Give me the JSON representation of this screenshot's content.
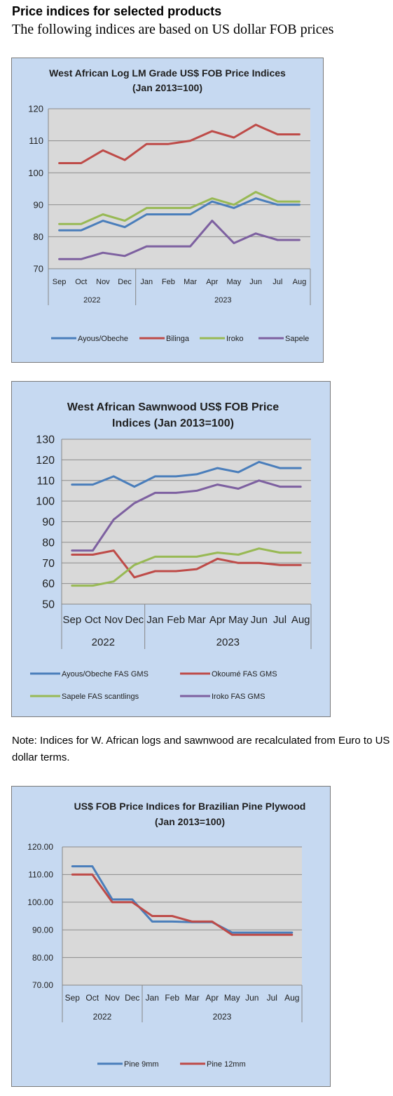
{
  "page": {
    "heading": "Price indices for selected products",
    "subheading": "The following indices are based on US dollar FOB prices",
    "note": "Note: Indices for W. African logs and sawnwood are recalculated from Euro to US dollar terms."
  },
  "chart_data": [
    {
      "type": "line",
      "title_lines": [
        "West African Log LM Grade US$ FOB Price Indices",
        "(Jan 2013=100)"
      ],
      "categories": [
        "Sep",
        "Oct",
        "Nov",
        "Dec",
        "Jan",
        "Feb",
        "Mar",
        "Apr",
        "May",
        "Jun",
        "Jul",
        "Aug"
      ],
      "year_groups": [
        {
          "label": "2022",
          "span": 4
        },
        {
          "label": "2023",
          "span": 8
        }
      ],
      "ylim": [
        70,
        120
      ],
      "yticks": [
        "70",
        "80",
        "90",
        "100",
        "110",
        "120"
      ],
      "grid": true,
      "legend_position": "bottom",
      "series": [
        {
          "name": "Ayous/Obeche",
          "color": "#4a7ebb",
          "values": [
            82,
            82,
            85,
            83,
            87,
            87,
            87,
            91,
            89,
            92,
            90,
            90
          ]
        },
        {
          "name": "Bilinga",
          "color": "#be4b48",
          "values": [
            103,
            103,
            107,
            104,
            109,
            109,
            110,
            113,
            111,
            115,
            112,
            112
          ]
        },
        {
          "name": "Iroko",
          "color": "#98b954",
          "values": [
            84,
            84,
            87,
            85,
            89,
            89,
            89,
            92,
            90,
            94,
            91,
            91
          ]
        },
        {
          "name": "Sapele",
          "color": "#7d60a0",
          "values": [
            73,
            73,
            75,
            74,
            77,
            77,
            77,
            85,
            78,
            81,
            79,
            79
          ]
        }
      ]
    },
    {
      "type": "line",
      "title_lines": [
        "West African Sawnwood US$ FOB Price",
        "Indices (Jan 2013=100)"
      ],
      "categories": [
        "Sep",
        "Oct",
        "Nov",
        "Dec",
        "Jan",
        "Feb",
        "Mar",
        "Apr",
        "May",
        "Jun",
        "Jul",
        "Aug"
      ],
      "year_groups": [
        {
          "label": "2022",
          "span": 4
        },
        {
          "label": "2023",
          "span": 8
        }
      ],
      "ylim": [
        50,
        130
      ],
      "yticks": [
        "50",
        "60",
        "70",
        "80",
        "90",
        "100",
        "110",
        "120",
        "130"
      ],
      "grid": true,
      "legend_position": "bottom",
      "series": [
        {
          "name": "Ayous/Obeche  FAS GMS",
          "color": "#4a7ebb",
          "values": [
            108,
            108,
            112,
            107,
            112,
            112,
            113,
            116,
            114,
            119,
            116,
            116
          ]
        },
        {
          "name": "Okoumé  FAS GMS",
          "color": "#be4b48",
          "values": [
            74,
            74,
            76,
            63,
            66,
            66,
            67,
            72,
            70,
            70,
            69,
            69
          ]
        },
        {
          "name": "Sapele FAS scantlings",
          "color": "#98b954",
          "values": [
            59,
            59,
            61,
            69,
            73,
            73,
            73,
            75,
            74,
            77,
            75,
            75
          ]
        },
        {
          "name": "Iroko FAS GMS",
          "color": "#7d60a0",
          "values": [
            76,
            76,
            91,
            99,
            104,
            104,
            105,
            108,
            106,
            110,
            107,
            107
          ]
        }
      ]
    },
    {
      "type": "line",
      "title_lines": [
        "US$ FOB Price Indices for Brazilian Pine Plywood",
        "(Jan 2013=100)"
      ],
      "categories": [
        "Sep",
        "Oct",
        "Nov",
        "Dec",
        "Jan",
        "Feb",
        "Mar",
        "Apr",
        "May",
        "Jun",
        "Jul",
        "Aug"
      ],
      "year_groups": [
        {
          "label": "2022",
          "span": 4
        },
        {
          "label": "2023",
          "span": 8
        }
      ],
      "ylim": [
        70,
        120
      ],
      "yticks": [
        "70.00",
        "80.00",
        "90.00",
        "100.00",
        "110.00",
        "120.00"
      ],
      "grid": true,
      "legend_position": "bottom",
      "series": [
        {
          "name": "Pine 9mm",
          "color": "#4a7ebb",
          "values": [
            113,
            113,
            101,
            101,
            93,
            93,
            92.8,
            92.8,
            89,
            89,
            89,
            89
          ]
        },
        {
          "name": "Pine 12mm",
          "color": "#be4b48",
          "values": [
            110,
            110,
            100,
            100,
            95,
            95,
            93,
            93,
            88.2,
            88.2,
            88.2,
            88.2
          ]
        }
      ]
    }
  ]
}
